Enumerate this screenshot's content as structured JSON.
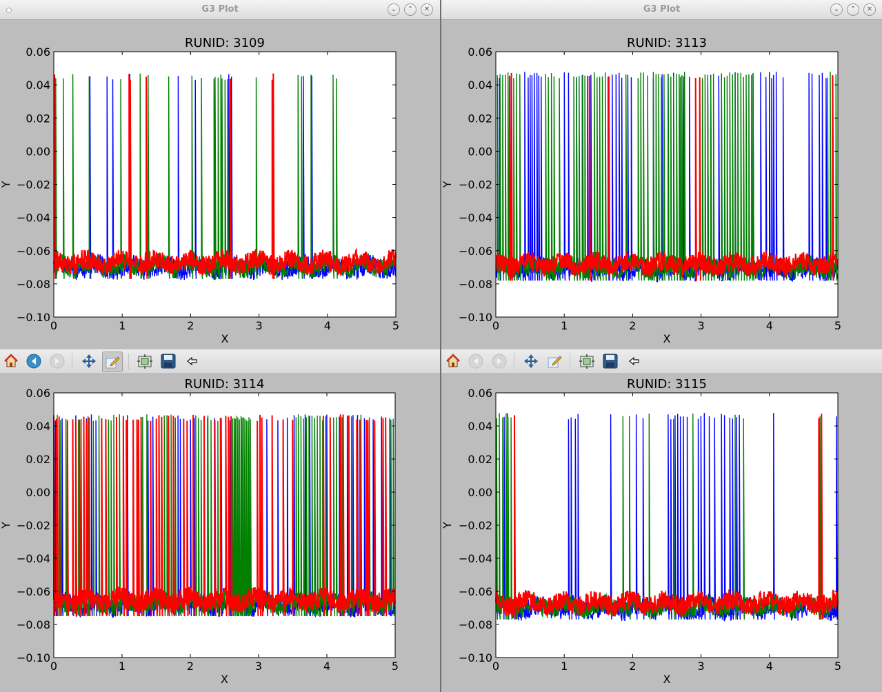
{
  "windows": [
    {
      "title": "G3 Plot",
      "runid_title": "RUNID:  3109"
    },
    {
      "title": "G3 Plot",
      "runid_title": "RUNID:  3113"
    }
  ],
  "toolbar_tools": [
    "home-icon",
    "back-arrow-icon",
    "forward-arrow-icon",
    "pan-move-icon",
    "edit-axes-icon",
    "configure-subplots-icon",
    "save-disk-icon",
    "back-small-arrow-icon"
  ],
  "window_controls": [
    "minimize-icon",
    "maximize-icon",
    "close-icon"
  ],
  "colors": {
    "blue": "#0000ff",
    "green": "#007f00",
    "red": "#ff0000"
  },
  "chart_data": [
    {
      "type": "line",
      "title": "RUNID:  3109",
      "xlabel": "X",
      "ylabel": "Y",
      "xlim": [
        0,
        5
      ],
      "ylim": [
        -0.1,
        0.06
      ],
      "xticks": [
        "0",
        "1",
        "2",
        "3",
        "4",
        "5"
      ],
      "yticks": [
        "0.06",
        "0.04",
        "0.02",
        "0.00",
        "−0.02",
        "−0.04",
        "−0.06",
        "−0.08",
        "−0.10"
      ],
      "baseline_mean": -0.069,
      "spike_peak": 0.047,
      "series": [
        {
          "color": "blue",
          "spikes_x": [
            0.53,
            0.78,
            0.86,
            1.11,
            1.82,
            2.07,
            2.56,
            2.6,
            3.65,
            3.77
          ]
        },
        {
          "color": "green",
          "spikes_x": [
            0.03,
            0.14,
            0.28,
            0.52,
            0.98,
            1.26,
            1.38,
            1.68,
            2.02,
            2.16,
            2.34,
            2.36,
            2.4,
            2.44,
            2.46,
            2.5,
            2.54,
            2.96,
            3.57,
            3.62,
            3.76,
            4.08,
            4.13
          ]
        },
        {
          "color": "red",
          "spikes_x": [
            0.01,
            1.1,
            1.12,
            1.35,
            2.58,
            3.19,
            3.21
          ]
        }
      ]
    },
    {
      "type": "line",
      "title": "RUNID:  3113",
      "xlabel": "X",
      "ylabel": "Y",
      "xlim": [
        0,
        5
      ],
      "ylim": [
        -0.1,
        0.06
      ],
      "xticks": [
        "0",
        "1",
        "2",
        "3",
        "4",
        "5"
      ],
      "yticks": [
        "0.06",
        "0.04",
        "0.02",
        "0.00",
        "−0.02",
        "−0.04",
        "−0.06",
        "−0.08",
        "−0.10"
      ],
      "baseline_mean": -0.07,
      "spike_peak": 0.048,
      "series": [
        {
          "color": "blue",
          "spikes_x": [
            0.05,
            0.22,
            0.42,
            0.47,
            0.5,
            0.53,
            0.56,
            0.6,
            0.63,
            0.66,
            1.0,
            1.06,
            1.18,
            1.27,
            1.34,
            1.39,
            1.64,
            1.7,
            1.76,
            1.8,
            1.84,
            1.93,
            1.98,
            2.3,
            2.43,
            2.52,
            2.6,
            2.74,
            2.83,
            3.1,
            3.14,
            3.26,
            3.3,
            3.5,
            3.76,
            3.87,
            3.95,
            4.0,
            4.03,
            4.06,
            4.1,
            4.2,
            4.58,
            4.62,
            4.73,
            4.77,
            4.83
          ]
        },
        {
          "color": "green",
          "spikes_x": [
            0.02,
            0.06,
            0.1,
            0.14,
            0.18,
            0.26,
            0.3,
            0.35,
            0.73,
            0.77,
            0.81,
            0.85,
            0.93,
            1.14,
            1.18,
            1.22,
            1.26,
            1.3,
            1.44,
            1.48,
            1.52,
            1.56,
            1.6,
            1.9,
            2.08,
            2.12,
            2.16,
            2.22,
            2.3,
            2.34,
            2.38,
            2.42,
            2.46,
            2.52,
            2.56,
            2.6,
            2.64,
            2.68,
            2.7,
            2.72,
            2.76,
            3.02,
            3.06,
            3.1,
            3.14,
            3.18,
            3.3,
            3.34,
            3.38,
            3.42,
            3.46,
            3.5,
            3.54,
            3.58,
            3.62,
            3.66,
            3.7,
            3.74,
            3.76,
            4.85,
            4.89,
            4.93,
            4.97
          ]
        },
        {
          "color": "red",
          "spikes_x": [
            0.2,
            0.23,
            1.37,
            1.65,
            2.98,
            2.92,
            4.92
          ]
        }
      ]
    },
    {
      "type": "line",
      "title": "RUNID:  3114",
      "xlabel": "X",
      "ylabel": "Y",
      "xlim": [
        0,
        5
      ],
      "ylim": [
        -0.1,
        0.06
      ],
      "xticks": [
        "0",
        "1",
        "2",
        "3",
        "4",
        "5"
      ],
      "yticks": [
        "0.06",
        "0.04",
        "0.02",
        "0.00",
        "−0.02",
        "−0.04",
        "−0.06",
        "−0.08",
        "−0.10"
      ],
      "baseline_mean": -0.067,
      "spike_peak": 0.047,
      "series": [
        {
          "color": "blue",
          "spikes_x": [
            0.02,
            0.12,
            0.32,
            0.48,
            0.55,
            0.62,
            1.02,
            1.08,
            1.38,
            1.45,
            1.82,
            1.85,
            2.0,
            2.06,
            2.25,
            2.35,
            2.45,
            2.58,
            3.12,
            3.28,
            3.42,
            3.52,
            3.68,
            3.75,
            3.82,
            4.0,
            4.18,
            4.3,
            4.38,
            4.45,
            4.55,
            4.68,
            4.8,
            4.92
          ]
        },
        {
          "color": "green",
          "spikes_x": [
            0.05,
            0.1,
            0.18,
            0.36,
            0.4,
            0.44,
            0.5,
            0.58,
            0.66,
            0.8,
            0.84,
            0.88,
            0.96,
            1.22,
            1.3,
            1.36,
            1.62,
            1.66,
            1.72,
            1.78,
            2.08,
            2.12,
            2.16,
            2.26,
            2.3,
            2.4,
            2.62,
            2.64,
            2.66,
            2.68,
            2.7,
            2.72,
            2.74,
            2.76,
            2.78,
            2.8,
            2.82,
            2.84,
            2.86,
            2.88,
            3.55,
            3.58,
            3.62,
            3.66,
            3.7,
            3.74,
            3.78,
            3.82,
            3.86,
            3.9,
            3.94,
            3.98,
            4.1,
            4.14,
            4.22,
            4.36,
            4.5,
            4.62,
            4.94,
            4.97
          ]
        },
        {
          "color": "red",
          "spikes_x": [
            0.0,
            0.04,
            0.08,
            0.2,
            0.28,
            0.32,
            0.38,
            0.44,
            0.48,
            0.52,
            0.7,
            0.76,
            0.92,
            1.02,
            1.06,
            1.16,
            1.22,
            1.24,
            1.28,
            1.42,
            1.5,
            1.54,
            1.58,
            1.68,
            1.75,
            1.9,
            1.95,
            2.04,
            2.2,
            2.36,
            2.44,
            2.52,
            2.56,
            2.6,
            2.98,
            3.02,
            3.05,
            3.2,
            3.36,
            3.5,
            3.95,
            4.05,
            4.2,
            4.24,
            4.32,
            4.44,
            4.48,
            4.58,
            4.6,
            4.7,
            4.82,
            4.86
          ]
        }
      ]
    },
    {
      "type": "line",
      "title": "RUNID:  3115",
      "xlabel": "X",
      "ylabel": "Y",
      "xlim": [
        0,
        5
      ],
      "ylim": [
        -0.1,
        0.06
      ],
      "xticks": [
        "0",
        "1",
        "2",
        "3",
        "4",
        "5"
      ],
      "yticks": [
        "0.06",
        "0.04",
        "0.02",
        "0.00",
        "−0.02",
        "−0.04",
        "−0.06",
        "−0.08",
        "−0.10"
      ],
      "baseline_mean": -0.069,
      "spike_peak": 0.048,
      "series": [
        {
          "color": "blue",
          "spikes_x": [
            0.12,
            0.17,
            1.06,
            1.1,
            1.16,
            1.2,
            1.68,
            2.05,
            2.15,
            2.52,
            2.56,
            2.62,
            2.66,
            2.7,
            2.74,
            2.8,
            2.96,
            3.0,
            3.05,
            3.12,
            3.2,
            3.3,
            3.34,
            3.42,
            3.46,
            3.52,
            3.56,
            4.06,
            4.98
          ]
        },
        {
          "color": "green",
          "spikes_x": [
            0.01,
            0.05,
            0.1,
            0.15,
            0.18,
            0.22,
            1.86,
            1.95,
            2.24,
            2.6,
            2.88,
            3.5,
            3.62,
            4.74
          ]
        },
        {
          "color": "red",
          "spikes_x": [
            0.27,
            4.72,
            4.76
          ]
        }
      ]
    }
  ]
}
